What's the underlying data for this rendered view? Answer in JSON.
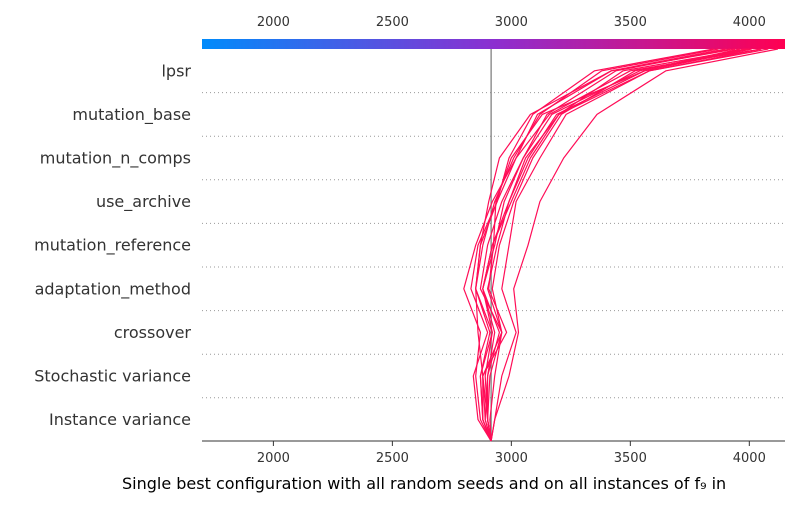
{
  "chart_data": {
    "type": "line",
    "title": "",
    "xlabel": "Single best configuration with all random seeds and on all instances of f₉ in",
    "ylabel": "",
    "xlim": [
      1700,
      4150
    ],
    "xticks": [
      2000,
      2500,
      3000,
      3500,
      4000
    ],
    "xtick_labels": [
      "2000",
      "2500",
      "3000",
      "3500",
      "4000"
    ],
    "base_value": 2915,
    "colorbar": {
      "position": "top",
      "start_color": "#008bfb",
      "mid_color": "#8c2fd0",
      "end_color": "#ff0052"
    },
    "features": [
      "lpsr",
      "mutation_base",
      "mutation_n_comps",
      "use_archive",
      "mutation_reference",
      "adaptation_method",
      "crossover",
      "Stochastic variance",
      "Instance variance"
    ],
    "line_color": "#ff0d57",
    "grid": "dotted horizontal separators",
    "series": [
      {
        "values": [
          2915,
          2900,
          2880,
          2980,
          2905,
          2925,
          2935,
          3000,
          3130,
          3560,
          3980
        ]
      },
      {
        "values": [
          2915,
          2890,
          2880,
          2860,
          2850,
          2870,
          2905,
          2950,
          3080,
          3420,
          3900
        ]
      },
      {
        "values": [
          2915,
          2870,
          2850,
          2870,
          2800,
          2850,
          2920,
          3020,
          3160,
          3500,
          4050
        ]
      },
      {
        "values": [
          2915,
          2930,
          2960,
          3020,
          2960,
          2990,
          3020,
          3120,
          3230,
          3580,
          4050
        ]
      },
      {
        "values": [
          2915,
          2880,
          2880,
          2960,
          2870,
          2900,
          2960,
          3050,
          3170,
          3540,
          3960
        ]
      },
      {
        "values": [
          2915,
          2900,
          2890,
          2920,
          2880,
          2920,
          2990,
          3060,
          3200,
          3580,
          4080
        ]
      },
      {
        "values": [
          2915,
          2880,
          2870,
          2920,
          2850,
          2870,
          2940,
          2990,
          3090,
          3350,
          3850
        ]
      },
      {
        "values": [
          2915,
          2930,
          2990,
          3030,
          3010,
          3070,
          3120,
          3220,
          3360,
          3650,
          4120
        ]
      },
      {
        "values": [
          2915,
          2860,
          2840,
          2900,
          2830,
          2860,
          2940,
          3020,
          3110,
          3420,
          3940
        ]
      },
      {
        "values": [
          2915,
          2900,
          2900,
          2930,
          2880,
          2920,
          3000,
          3080,
          3200,
          3470,
          3990
        ]
      },
      {
        "values": [
          2915,
          2890,
          2900,
          2950,
          2880,
          2930,
          2970,
          3050,
          3150,
          3440,
          3920
        ]
      },
      {
        "values": [
          2915,
          2900,
          2910,
          2960,
          2900,
          2940,
          2990,
          3070,
          3190,
          3560,
          4010
        ]
      },
      {
        "values": [
          2915,
          2910,
          2930,
          2960,
          2920,
          2950,
          3010,
          3090,
          3210,
          3520,
          4000
        ]
      },
      {
        "values": [
          2915,
          2880,
          2870,
          2910,
          2850,
          2880,
          2930,
          3010,
          3120,
          3380,
          3870
        ]
      }
    ]
  }
}
